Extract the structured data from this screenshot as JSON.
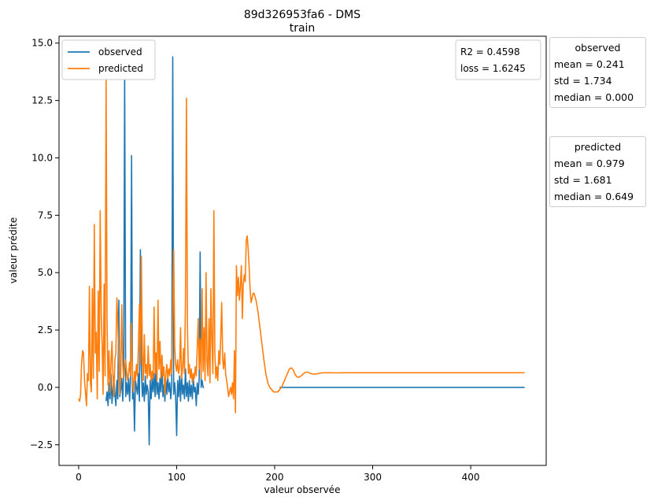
{
  "chart_data": {
    "type": "line",
    "title": "89d326953fa6 - DMS",
    "subtitle": "train",
    "xlabel": "valeur observée",
    "ylabel": "valeur prédite",
    "xlim": [
      -20,
      477
    ],
    "ylim": [
      -3.4,
      15.3
    ],
    "xticks": [
      "0",
      "100",
      "200",
      "300",
      "400"
    ],
    "yticks": [
      "−2.5",
      "0.0",
      "2.5",
      "5.0",
      "7.5",
      "10.0",
      "12.5",
      "15.0"
    ],
    "grid": false,
    "legend_position": "top-left",
    "series": [
      {
        "name": "observed",
        "color": "#1f77b4",
        "flat_from": 205,
        "flat_to": 455,
        "flat_value": 0.0,
        "points": [
          [
            28,
            -0.6
          ],
          [
            29,
            -0.2
          ],
          [
            30,
            -0.8
          ],
          [
            31,
            0.2
          ],
          [
            32,
            -0.5
          ],
          [
            33,
            0.6
          ],
          [
            34,
            -0.7
          ],
          [
            35,
            -0.1
          ],
          [
            36,
            0.5
          ],
          [
            37,
            -0.3
          ],
          [
            38,
            -0.8
          ],
          [
            39,
            0.3
          ],
          [
            40,
            -0.5
          ],
          [
            41,
            3.8
          ],
          [
            42,
            -0.4
          ],
          [
            43,
            -0.1
          ],
          [
            44,
            0.4
          ],
          [
            45,
            -0.6
          ],
          [
            46,
            0.8
          ],
          [
            47,
            13.8
          ],
          [
            48,
            -0.4
          ],
          [
            49,
            0.2
          ],
          [
            50,
            -0.3
          ],
          [
            51,
            0.4
          ],
          [
            52,
            -0.6
          ],
          [
            53,
            0.5
          ],
          [
            54,
            10.1
          ],
          [
            55,
            -0.5
          ],
          [
            56,
            0.0
          ],
          [
            57,
            -1.9
          ],
          [
            58,
            0.3
          ],
          [
            59,
            0.0
          ],
          [
            60,
            -0.3
          ],
          [
            61,
            0.6
          ],
          [
            62,
            -0.6
          ],
          [
            63,
            6.0
          ],
          [
            64,
            0.8
          ],
          [
            65,
            -0.4
          ],
          [
            66,
            0.2
          ],
          [
            67,
            -0.6
          ],
          [
            68,
            0.5
          ],
          [
            69,
            -0.3
          ],
          [
            70,
            0.1
          ],
          [
            71,
            -0.2
          ],
          [
            72,
            -2.5
          ],
          [
            73,
            0.3
          ],
          [
            74,
            -0.5
          ],
          [
            75,
            0.4
          ],
          [
            76,
            -0.2
          ],
          [
            77,
            0.6
          ],
          [
            78,
            -0.4
          ],
          [
            79,
            1.1
          ],
          [
            80,
            -0.3
          ],
          [
            81,
            0.2
          ],
          [
            82,
            -0.5
          ],
          [
            83,
            0.4
          ],
          [
            84,
            -0.2
          ],
          [
            85,
            1.0
          ],
          [
            86,
            -0.4
          ],
          [
            87,
            0.1
          ],
          [
            88,
            -0.6
          ],
          [
            89,
            0.3
          ],
          [
            90,
            -0.3
          ],
          [
            91,
            0.5
          ],
          [
            92,
            -0.2
          ],
          [
            93,
            0.2
          ],
          [
            94,
            -0.5
          ],
          [
            95,
            0.1
          ],
          [
            96,
            14.4
          ],
          [
            97,
            -0.3
          ],
          [
            98,
            0.2
          ],
          [
            99,
            -0.4
          ],
          [
            100,
            -2.1
          ],
          [
            101,
            0.3
          ],
          [
            102,
            -0.4
          ],
          [
            103,
            0.5
          ],
          [
            104,
            -0.6
          ],
          [
            105,
            0.6
          ],
          [
            106,
            -0.3
          ],
          [
            107,
            0.1
          ],
          [
            108,
            -0.5
          ],
          [
            109,
            0.8
          ],
          [
            110,
            -0.4
          ],
          [
            111,
            0.2
          ],
          [
            112,
            -0.6
          ],
          [
            113,
            0.3
          ],
          [
            114,
            -0.4
          ],
          [
            115,
            0.1
          ],
          [
            116,
            -0.5
          ],
          [
            117,
            0.4
          ],
          [
            118,
            -0.2
          ],
          [
            119,
            0.0
          ],
          [
            120,
            -0.8
          ],
          [
            121,
            0.2
          ],
          [
            122,
            -0.3
          ],
          [
            123,
            0.4
          ],
          [
            124,
            5.9
          ],
          [
            125,
            0.0
          ],
          [
            126,
            0.3
          ],
          [
            127,
            0.0
          ],
          [
            128,
            0.0
          ]
        ]
      },
      {
        "name": "predicted",
        "color": "#ff7f0e",
        "points": [
          [
            0,
            -0.5
          ],
          [
            1,
            -0.6
          ],
          [
            2,
            -0.3
          ],
          [
            3,
            1.0
          ],
          [
            4,
            1.6
          ],
          [
            5,
            1.5
          ],
          [
            6,
            0.3
          ],
          [
            7,
            -0.2
          ],
          [
            8,
            -0.8
          ],
          [
            9,
            0.6
          ],
          [
            10,
            0.3
          ],
          [
            11,
            4.4
          ],
          [
            12,
            0.2
          ],
          [
            13,
            -0.2
          ],
          [
            14,
            4.3
          ],
          [
            15,
            0.4
          ],
          [
            16,
            7.1
          ],
          [
            17,
            1.5
          ],
          [
            18,
            2.4
          ],
          [
            19,
            -0.5
          ],
          [
            20,
            4.2
          ],
          [
            21,
            0.7
          ],
          [
            22,
            7.7
          ],
          [
            23,
            3.2
          ],
          [
            24,
            1.8
          ],
          [
            25,
            -0.3
          ],
          [
            26,
            4.5
          ],
          [
            27,
            0.5
          ],
          [
            28,
            13.6
          ],
          [
            29,
            3.0
          ],
          [
            30,
            0.1
          ],
          [
            31,
            1.6
          ],
          [
            32,
            -0.2
          ],
          [
            33,
            1.0
          ],
          [
            34,
            2.0
          ],
          [
            35,
            0.5
          ],
          [
            36,
            -0.4
          ],
          [
            37,
            1.2
          ],
          [
            38,
            1.5
          ],
          [
            39,
            3.9
          ],
          [
            40,
            2.8
          ],
          [
            41,
            1.3
          ],
          [
            42,
            -0.3
          ],
          [
            43,
            0.6
          ],
          [
            44,
            3.6
          ],
          [
            45,
            1.0
          ],
          [
            46,
            0.4
          ],
          [
            47,
            0.8
          ],
          [
            48,
            1.2
          ],
          [
            49,
            0.7
          ],
          [
            50,
            0.3
          ],
          [
            51,
            0.6
          ],
          [
            52,
            1.1
          ],
          [
            53,
            0.5
          ],
          [
            54,
            2.8
          ],
          [
            55,
            0.4
          ],
          [
            56,
            -0.2
          ],
          [
            57,
            0.7
          ],
          [
            58,
            0.3
          ],
          [
            59,
            1.0
          ],
          [
            60,
            0.5
          ],
          [
            61,
            1.8
          ],
          [
            62,
            3.6
          ],
          [
            63,
            1.0
          ],
          [
            64,
            5.7
          ],
          [
            65,
            1.5
          ],
          [
            66,
            0.3
          ],
          [
            67,
            2.3
          ],
          [
            68,
            0.6
          ],
          [
            69,
            1.0
          ],
          [
            70,
            0.4
          ],
          [
            71,
            1.8
          ],
          [
            72,
            0.5
          ],
          [
            73,
            1.0
          ],
          [
            74,
            0.3
          ],
          [
            75,
            0.7
          ],
          [
            76,
            0.4
          ],
          [
            77,
            3.5
          ],
          [
            78,
            0.6
          ],
          [
            79,
            1.5
          ],
          [
            80,
            0.3
          ],
          [
            81,
            3.8
          ],
          [
            82,
            0.8
          ],
          [
            83,
            2.0
          ],
          [
            84,
            0.4
          ],
          [
            85,
            1.4
          ],
          [
            86,
            0.5
          ],
          [
            87,
            0.9
          ],
          [
            88,
            -0.3
          ],
          [
            89,
            0.6
          ],
          [
            90,
            1.0
          ],
          [
            91,
            0.4
          ],
          [
            92,
            0.8
          ],
          [
            93,
            0.5
          ],
          [
            94,
            1.2
          ],
          [
            95,
            0.6
          ],
          [
            96,
            3.3
          ],
          [
            97,
            6.0
          ],
          [
            98,
            1.8
          ],
          [
            99,
            1.0
          ],
          [
            100,
            0.7
          ],
          [
            101,
            1.2
          ],
          [
            102,
            0.6
          ],
          [
            103,
            0.9
          ],
          [
            104,
            2.6
          ],
          [
            105,
            0.4
          ],
          [
            106,
            0.8
          ],
          [
            107,
            1.7
          ],
          [
            108,
            0.6
          ],
          [
            109,
            3.9
          ],
          [
            110,
            12.6
          ],
          [
            111,
            2.6
          ],
          [
            112,
            0.6
          ],
          [
            113,
            1.0
          ],
          [
            114,
            0.4
          ],
          [
            115,
            0.8
          ],
          [
            116,
            0.2
          ],
          [
            117,
            0.6
          ],
          [
            118,
            0.4
          ],
          [
            119,
            0.9
          ],
          [
            120,
            0.5
          ],
          [
            121,
            1.7
          ],
          [
            122,
            3.0
          ],
          [
            123,
            0.8
          ],
          [
            124,
            2.1
          ],
          [
            125,
            0.4
          ],
          [
            126,
            4.3
          ],
          [
            127,
            0.7
          ],
          [
            128,
            2.6
          ],
          [
            129,
            0.3
          ],
          [
            130,
            5.0
          ],
          [
            131,
            1.1
          ],
          [
            132,
            0.5
          ],
          [
            133,
            3.0
          ],
          [
            134,
            0.2
          ],
          [
            135,
            4.3
          ],
          [
            136,
            2.0
          ],
          [
            137,
            0.6
          ],
          [
            138,
            7.7
          ],
          [
            139,
            1.5
          ],
          [
            140,
            0.4
          ],
          [
            141,
            0.9
          ],
          [
            142,
            0.3
          ],
          [
            143,
            1.6
          ],
          [
            144,
            1.0
          ],
          [
            145,
            2.2
          ],
          [
            146,
            3.7
          ],
          [
            147,
            1.2
          ],
          [
            148,
            0.8
          ],
          [
            149,
            1.5
          ],
          [
            150,
            0.6
          ],
          [
            151,
            0.3
          ],
          [
            152,
            0.0
          ],
          [
            153,
            -0.4
          ],
          [
            154,
            -0.2
          ],
          [
            155,
            0.0
          ],
          [
            156,
            -0.3
          ],
          [
            157,
            0.2
          ],
          [
            158,
            -0.5
          ],
          [
            159,
            1.6
          ],
          [
            160,
            -1.1
          ],
          [
            161,
            5.3
          ],
          [
            162,
            4.0
          ],
          [
            163,
            4.8
          ],
          [
            164,
            3.8
          ],
          [
            165,
            4.4
          ],
          [
            166,
            5.3
          ],
          [
            167,
            3.0
          ],
          [
            168,
            4.5
          ],
          [
            169,
            4.9
          ],
          [
            170,
            4.6
          ],
          [
            171,
            6.4
          ],
          [
            172,
            6.6
          ],
          [
            173,
            6.0
          ],
          [
            174,
            5.2
          ],
          [
            175,
            4.2
          ],
          [
            176,
            3.7
          ],
          [
            177,
            3.9
          ],
          [
            178,
            4.1
          ],
          [
            179,
            4.1
          ],
          [
            181,
            3.8
          ],
          [
            183,
            3.3
          ],
          [
            185,
            2.6
          ],
          [
            187,
            1.9
          ],
          [
            189,
            1.2
          ],
          [
            191,
            0.6
          ],
          [
            193,
            0.2
          ],
          [
            195,
            0.0
          ],
          [
            197,
            -0.1
          ],
          [
            199,
            -0.2
          ],
          [
            201,
            -0.2
          ],
          [
            203,
            -0.2
          ],
          [
            205,
            -0.1
          ],
          [
            207,
            0.0
          ],
          [
            209,
            0.2
          ],
          [
            211,
            0.4
          ],
          [
            213,
            0.6
          ],
          [
            215,
            0.8
          ],
          [
            217,
            0.85
          ],
          [
            219,
            0.75
          ],
          [
            221,
            0.55
          ],
          [
            223,
            0.45
          ],
          [
            225,
            0.45
          ],
          [
            227,
            0.5
          ],
          [
            229,
            0.58
          ],
          [
            231,
            0.65
          ],
          [
            233,
            0.67
          ],
          [
            235,
            0.64
          ],
          [
            237,
            0.6
          ],
          [
            239,
            0.58
          ],
          [
            241,
            0.58
          ],
          [
            244,
            0.6
          ],
          [
            248,
            0.63
          ],
          [
            252,
            0.64
          ],
          [
            256,
            0.64
          ],
          [
            262,
            0.63
          ],
          [
            270,
            0.64
          ],
          [
            280,
            0.64
          ],
          [
            300,
            0.64
          ],
          [
            350,
            0.64
          ],
          [
            400,
            0.64
          ],
          [
            455,
            0.64
          ]
        ]
      }
    ],
    "annotations": {
      "r2_label": "R2 = 0.4598",
      "loss_label": "loss = 1.6245"
    },
    "stats_boxes": [
      {
        "title": "observed",
        "mean": "mean = 0.241",
        "std": "std = 1.734",
        "median": "median = 0.000"
      },
      {
        "title": "predicted",
        "mean": "mean = 0.979",
        "std": "std = 1.681",
        "median": "median = 0.649"
      }
    ]
  }
}
